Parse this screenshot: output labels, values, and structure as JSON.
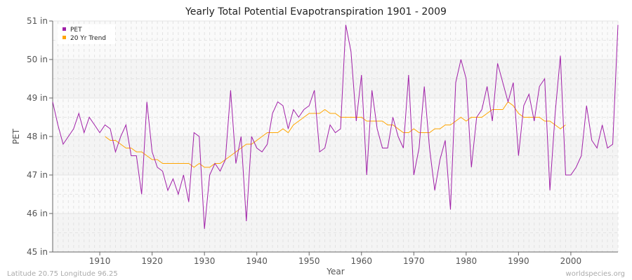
{
  "chart_data": {
    "type": "line",
    "title": "Yearly Total Potential Evapotranspiration 1901 - 2009",
    "xlabel": "Year",
    "ylabel": "PET",
    "xlim": [
      1901,
      2009
    ],
    "ylim": [
      45,
      51
    ],
    "xticks": [
      1910,
      1920,
      1930,
      1940,
      1950,
      1960,
      1970,
      1980,
      1990,
      2000
    ],
    "yticks": [
      45,
      46,
      47,
      48,
      49,
      50,
      51
    ],
    "ytick_labels": [
      "45 in",
      "46 in",
      "47 in",
      "48 in",
      "49 in",
      "50 in",
      "51 in"
    ],
    "grid": true,
    "legend_position": "top-left",
    "series": [
      {
        "name": "PET",
        "color": "#a020a8",
        "x_start": 1901,
        "values": [
          48.9,
          48.3,
          47.8,
          48.0,
          48.2,
          48.6,
          48.1,
          48.5,
          48.3,
          48.1,
          48.3,
          48.2,
          47.6,
          48.0,
          48.3,
          47.5,
          47.5,
          46.5,
          48.9,
          47.6,
          47.2,
          47.1,
          46.6,
          46.9,
          46.5,
          47.0,
          46.3,
          48.1,
          48.0,
          45.6,
          47.0,
          47.3,
          47.1,
          47.4,
          49.2,
          47.3,
          48.0,
          45.8,
          48.0,
          47.7,
          47.6,
          47.8,
          48.6,
          48.9,
          48.8,
          48.2,
          48.7,
          48.5,
          48.7,
          48.8,
          49.2,
          47.6,
          47.7,
          48.3,
          48.1,
          48.2,
          50.9,
          50.2,
          48.4,
          49.6,
          47.0,
          49.2,
          48.2,
          47.7,
          47.7,
          48.5,
          48.0,
          47.7,
          49.6,
          47.0,
          47.7,
          49.3,
          47.7,
          46.6,
          47.4,
          47.9,
          46.1,
          49.4,
          50.0,
          49.5,
          47.2,
          48.5,
          48.7,
          49.3,
          48.4,
          49.9,
          49.4,
          48.9,
          49.4,
          47.5,
          48.8,
          49.1,
          48.4,
          49.3,
          49.5,
          46.6,
          48.6,
          50.1,
          47.0,
          47.0,
          47.2,
          47.5,
          48.8,
          47.9,
          47.7,
          48.3,
          47.7,
          47.8,
          50.9
        ]
      },
      {
        "name": "20 Yr Trend",
        "color": "#ffa500",
        "x_start": 1911,
        "values": [
          48.0,
          47.9,
          47.9,
          47.8,
          47.7,
          47.7,
          47.6,
          47.6,
          47.5,
          47.4,
          47.4,
          47.3,
          47.3,
          47.3,
          47.3,
          47.3,
          47.3,
          47.2,
          47.3,
          47.2,
          47.2,
          47.3,
          47.3,
          47.4,
          47.5,
          47.6,
          47.7,
          47.8,
          47.8,
          47.9,
          48.0,
          48.1,
          48.1,
          48.1,
          48.2,
          48.1,
          48.3,
          48.4,
          48.5,
          48.6,
          48.6,
          48.6,
          48.7,
          48.6,
          48.6,
          48.5,
          48.5,
          48.5,
          48.5,
          48.5,
          48.4,
          48.4,
          48.4,
          48.4,
          48.3,
          48.3,
          48.2,
          48.1,
          48.1,
          48.2,
          48.1,
          48.1,
          48.1,
          48.2,
          48.2,
          48.3,
          48.3,
          48.4,
          48.5,
          48.4,
          48.5,
          48.5,
          48.5,
          48.6,
          48.7,
          48.7,
          48.7,
          48.9,
          48.8,
          48.6,
          48.5,
          48.5,
          48.5,
          48.5,
          48.4,
          48.4,
          48.3,
          48.2,
          48.3
        ]
      }
    ]
  },
  "footer": {
    "left": "Latitude 20.75 Longitude 96.25",
    "right": "worldspecies.org"
  }
}
